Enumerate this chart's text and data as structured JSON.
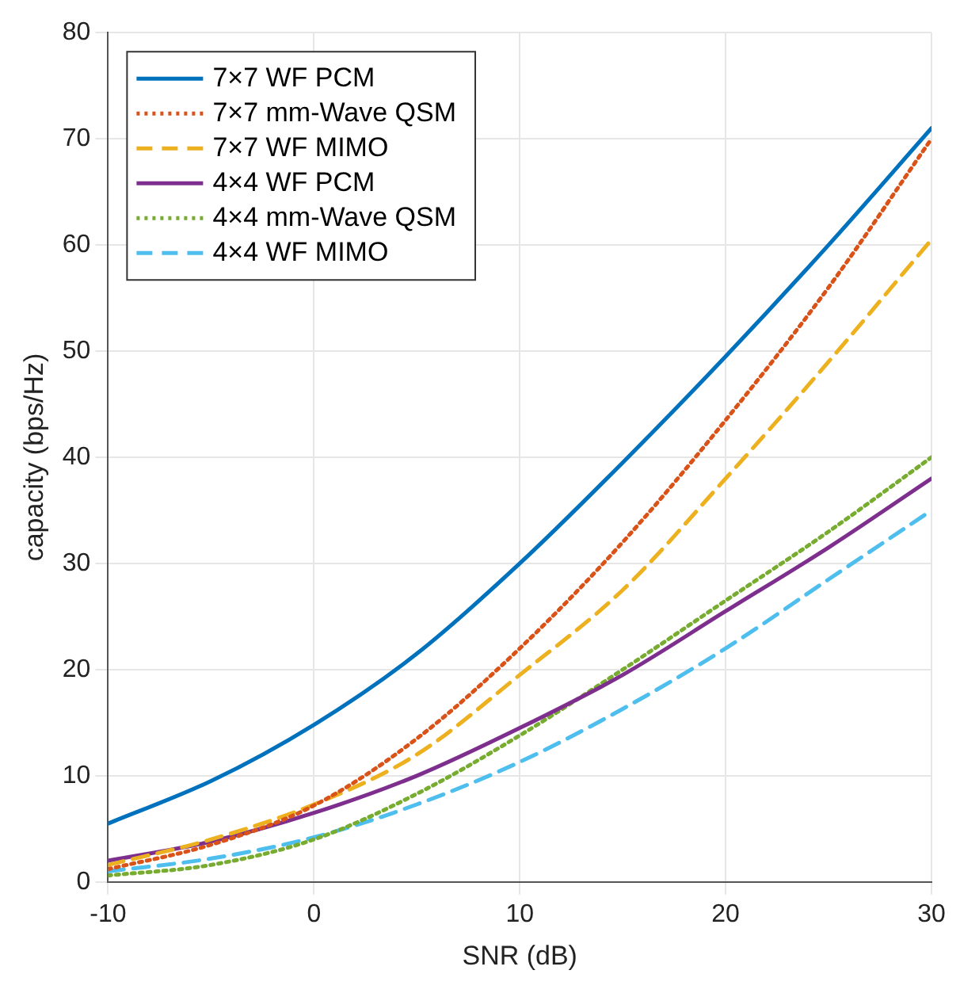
{
  "chart_data": {
    "type": "line",
    "xlabel": "SNR (dB)",
    "ylabel": "capacity (bps/Hz)",
    "x": [
      -10,
      -5,
      0,
      5,
      10,
      15,
      20,
      25,
      30
    ],
    "series": [
      {
        "name": "7×7 WF PCM",
        "color": "#0072bd",
        "line_style": "solid",
        "values": [
          5.5,
          9.5,
          14.8,
          21.5,
          30,
          39.5,
          49.5,
          60,
          71
        ]
      },
      {
        "name": "7×7 mm-Wave QSM",
        "color": "#d95319",
        "line_style": "dotted",
        "values": [
          1.2,
          3.5,
          7.2,
          13.5,
          22,
          32,
          43.5,
          56,
          70
        ]
      },
      {
        "name": "7×7 WF MIMO",
        "color": "#edb120",
        "line_style": "dashed",
        "values": [
          1.6,
          4,
          7.3,
          12,
          19.5,
          27.5,
          38,
          49,
          60.5
        ]
      },
      {
        "name": "4×4 WF PCM",
        "color": "#7e2f8e",
        "line_style": "solid",
        "values": [
          2,
          3.8,
          6.5,
          10,
          14.5,
          19.5,
          25.5,
          31.5,
          38
        ]
      },
      {
        "name": "4×4 mm-Wave QSM",
        "color": "#77ac30",
        "line_style": "dotted",
        "values": [
          0.6,
          1.6,
          4,
          8.3,
          13.8,
          20,
          26.5,
          33,
          40
        ]
      },
      {
        "name": "4×4 WF MIMO",
        "color": "#4dbeee",
        "line_style": "dashed",
        "values": [
          1,
          2.2,
          4.2,
          7.3,
          11.3,
          16.3,
          22,
          28.5,
          35
        ]
      }
    ],
    "xlim": [
      -10,
      30
    ],
    "xticks": [
      -10,
      0,
      10,
      20,
      30
    ],
    "ylim": [
      0,
      80
    ],
    "yticks": [
      0,
      10,
      20,
      30,
      40,
      50,
      60,
      70,
      80
    ],
    "grid": true,
    "legend": "top left",
    "marker": "none"
  }
}
